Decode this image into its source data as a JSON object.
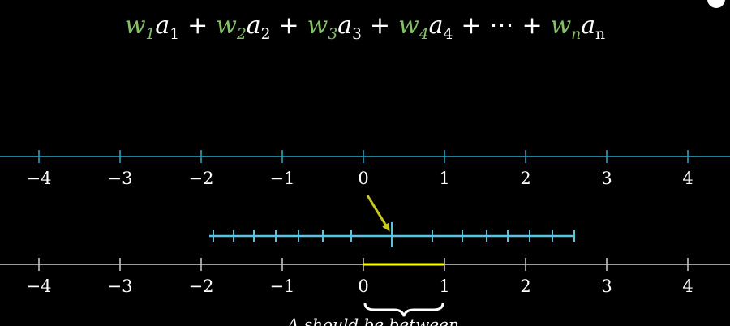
{
  "formula": {
    "terms": [
      {
        "w": "w",
        "wsub": "1",
        "a": "a",
        "asub": "1"
      },
      {
        "w": "w",
        "wsub": "2",
        "a": "a",
        "asub": "2"
      },
      {
        "w": "w",
        "wsub": "3",
        "a": "a",
        "asub": "3"
      },
      {
        "w": "w",
        "wsub": "4",
        "a": "a",
        "asub": "4"
      },
      {
        "w": "w",
        "wsub": "n",
        "a": "a",
        "asub": "n"
      }
    ],
    "plus": "+",
    "ellipsis": "⋯"
  },
  "top_number_line": {
    "tick_labels": [
      "−4",
      "−3",
      "−2",
      "−1",
      "0",
      "1",
      "2",
      "3",
      "4"
    ],
    "color": "#29abca"
  },
  "bottom_number_line": {
    "tick_labels": [
      "−4",
      "−3",
      "−2",
      "−1",
      "0",
      "1",
      "2",
      "3",
      "4"
    ],
    "color": "#d0d0d0",
    "highlight_from": 0,
    "highlight_to": 1,
    "highlight_color": "#ffff00"
  },
  "sigmoid_line": {
    "color": "#58c4dd",
    "range": [
      -1.9,
      2.6
    ],
    "ticks": [
      -1.85,
      -1.6,
      -1.35,
      -1.08,
      -0.8,
      -0.5,
      -0.15,
      0.35,
      0.85,
      1.22,
      1.52,
      1.78,
      2.05,
      2.33,
      2.6
    ],
    "marker_value": 0.35
  },
  "arrow_color": "#c8c820",
  "colors": {
    "weight": "#83c167",
    "text": "#ffffff",
    "background": "#000000"
  },
  "caption": "A                    should be              between"
}
